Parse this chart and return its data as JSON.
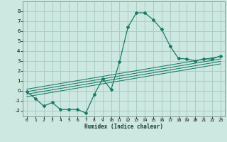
{
  "title": "",
  "xlabel": "Humidex (Indice chaleur)",
  "bg_color": "#cce8e0",
  "grid_color": "#aaccc4",
  "line_color": "#1a7a6a",
  "xlim": [
    -0.5,
    23.5
  ],
  "ylim": [
    -2.6,
    9.0
  ],
  "xticks": [
    0,
    1,
    2,
    3,
    4,
    5,
    6,
    7,
    8,
    9,
    10,
    11,
    12,
    13,
    14,
    15,
    16,
    17,
    18,
    19,
    20,
    21,
    22,
    23
  ],
  "yticks": [
    -2,
    -1,
    0,
    1,
    2,
    3,
    4,
    5,
    6,
    7,
    8
  ],
  "curve1_x": [
    0,
    1,
    2,
    3,
    4,
    5,
    6,
    7,
    8,
    9,
    10,
    11,
    12,
    13,
    14,
    15,
    16,
    17,
    18,
    19,
    20,
    21,
    22,
    23
  ],
  "curve1_y": [
    -0.1,
    -0.8,
    -1.55,
    -1.2,
    -1.9,
    -1.9,
    -1.9,
    -2.25,
    -0.4,
    1.2,
    0.1,
    2.9,
    6.4,
    7.85,
    7.85,
    7.15,
    6.2,
    4.5,
    3.25,
    3.2,
    3.0,
    3.2,
    3.2,
    3.5
  ],
  "line1_x": [
    0,
    23
  ],
  "line1_y": [
    -0.6,
    2.7
  ],
  "line2_x": [
    0,
    23
  ],
  "line2_y": [
    -0.35,
    2.95
  ],
  "line3_x": [
    0,
    23
  ],
  "line3_y": [
    -0.1,
    3.2
  ],
  "line4_x": [
    0,
    23
  ],
  "line4_y": [
    0.15,
    3.45
  ]
}
